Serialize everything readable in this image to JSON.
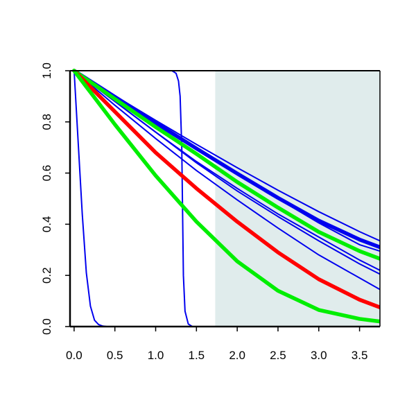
{
  "chart_data": {
    "type": "line",
    "title": "",
    "xlabel": "",
    "ylabel": "",
    "xlim": [
      -0.05,
      3.75
    ],
    "ylim": [
      0,
      1
    ],
    "x_ticks": [
      "0.0",
      "0.5",
      "1.0",
      "1.5",
      "2.0",
      "2.5",
      "3.0",
      "3.5"
    ],
    "y_ticks": [
      "0.0",
      "0.2",
      "0.4",
      "0.6",
      "0.8",
      "1.0"
    ],
    "shaded_region": {
      "x": [
        1.73,
        3.75
      ],
      "y": [
        0,
        1
      ],
      "color": "#e0ecec"
    },
    "grid": false,
    "legend": "none",
    "series": [
      {
        "color": "#0000ee",
        "width": "thin",
        "x": [
          0,
          0.05,
          0.1,
          0.15,
          0.2,
          0.25,
          0.3,
          0.35,
          0.4,
          0.5,
          3.75
        ],
        "y": [
          1.0,
          0.72,
          0.44,
          0.21,
          0.08,
          0.025,
          0.008,
          0.002,
          0.0,
          0.0,
          0.0
        ]
      },
      {
        "color": "#0000ee",
        "width": "thin",
        "x": [
          0,
          1.2,
          1.25,
          1.28,
          1.3,
          1.32,
          1.33,
          1.34,
          1.36,
          1.4,
          1.45,
          3.75
        ],
        "y": [
          1.0,
          1.0,
          0.99,
          0.96,
          0.9,
          0.7,
          0.45,
          0.2,
          0.06,
          0.01,
          0.0,
          0.0
        ]
      },
      {
        "color": "#0000ee",
        "width": "thin",
        "x": [
          0,
          0.5,
          1.0,
          1.5,
          2.0,
          2.5,
          3.0,
          3.5,
          3.75
        ],
        "y": [
          1.0,
          0.902,
          0.806,
          0.712,
          0.621,
          0.533,
          0.449,
          0.371,
          0.335
        ]
      },
      {
        "color": "#0000ee",
        "width": "thin",
        "x": [
          0,
          0.5,
          1.0,
          1.5,
          2.0,
          2.5,
          3.0,
          3.5,
          3.75
        ],
        "y": [
          1.0,
          0.9,
          0.8,
          0.7,
          0.6,
          0.5,
          0.405,
          0.32,
          0.295
        ]
      },
      {
        "color": "#0000ee",
        "width": "thick",
        "x": [
          0,
          0.5,
          1.0,
          1.5,
          2.0,
          2.5,
          3.0,
          3.5,
          3.75
        ],
        "y": [
          1.0,
          0.898,
          0.796,
          0.696,
          0.598,
          0.503,
          0.414,
          0.34,
          0.31
        ]
      },
      {
        "color": "#0000ee",
        "width": "thin",
        "x": [
          0,
          0.5,
          1.0,
          1.5,
          2.0,
          2.5,
          3.0,
          3.5,
          3.75
        ],
        "y": [
          1.0,
          0.88,
          0.76,
          0.645,
          0.54,
          0.44,
          0.35,
          0.26,
          0.22
        ]
      },
      {
        "color": "#0000ee",
        "width": "thin",
        "x": [
          0,
          0.5,
          1.0,
          1.5,
          2.0,
          2.5,
          3.0,
          3.5,
          3.75
        ],
        "y": [
          1.0,
          0.88,
          0.76,
          0.64,
          0.53,
          0.43,
          0.335,
          0.245,
          0.205
        ]
      },
      {
        "color": "#0000ee",
        "width": "thin",
        "x": [
          0,
          0.5,
          1.0,
          1.5,
          2.0,
          2.5,
          3.0,
          3.5,
          3.75
        ],
        "y": [
          1.0,
          0.865,
          0.735,
          0.61,
          0.495,
          0.385,
          0.28,
          0.19,
          0.145
        ]
      },
      {
        "color": "#00ee00",
        "width": "thick",
        "x": [
          0,
          0.5,
          1.0,
          1.5,
          2.0,
          2.5,
          3.0,
          3.5,
          3.75
        ],
        "y": [
          1.0,
          0.89,
          0.78,
          0.675,
          0.565,
          0.465,
          0.37,
          0.295,
          0.265
        ]
      },
      {
        "color": "#ff0000",
        "width": "thick",
        "x": [
          0,
          0.5,
          1.0,
          1.5,
          2.0,
          2.5,
          3.0,
          3.5,
          3.75
        ],
        "y": [
          1.0,
          0.84,
          0.68,
          0.54,
          0.41,
          0.29,
          0.185,
          0.105,
          0.075
        ]
      },
      {
        "color": "#00ee00",
        "width": "thick",
        "x": [
          0,
          0.5,
          1.0,
          1.5,
          2.0,
          2.5,
          3.0,
          3.5,
          3.75
        ],
        "y": [
          1.0,
          0.79,
          0.59,
          0.41,
          0.255,
          0.14,
          0.065,
          0.03,
          0.02
        ]
      }
    ]
  }
}
